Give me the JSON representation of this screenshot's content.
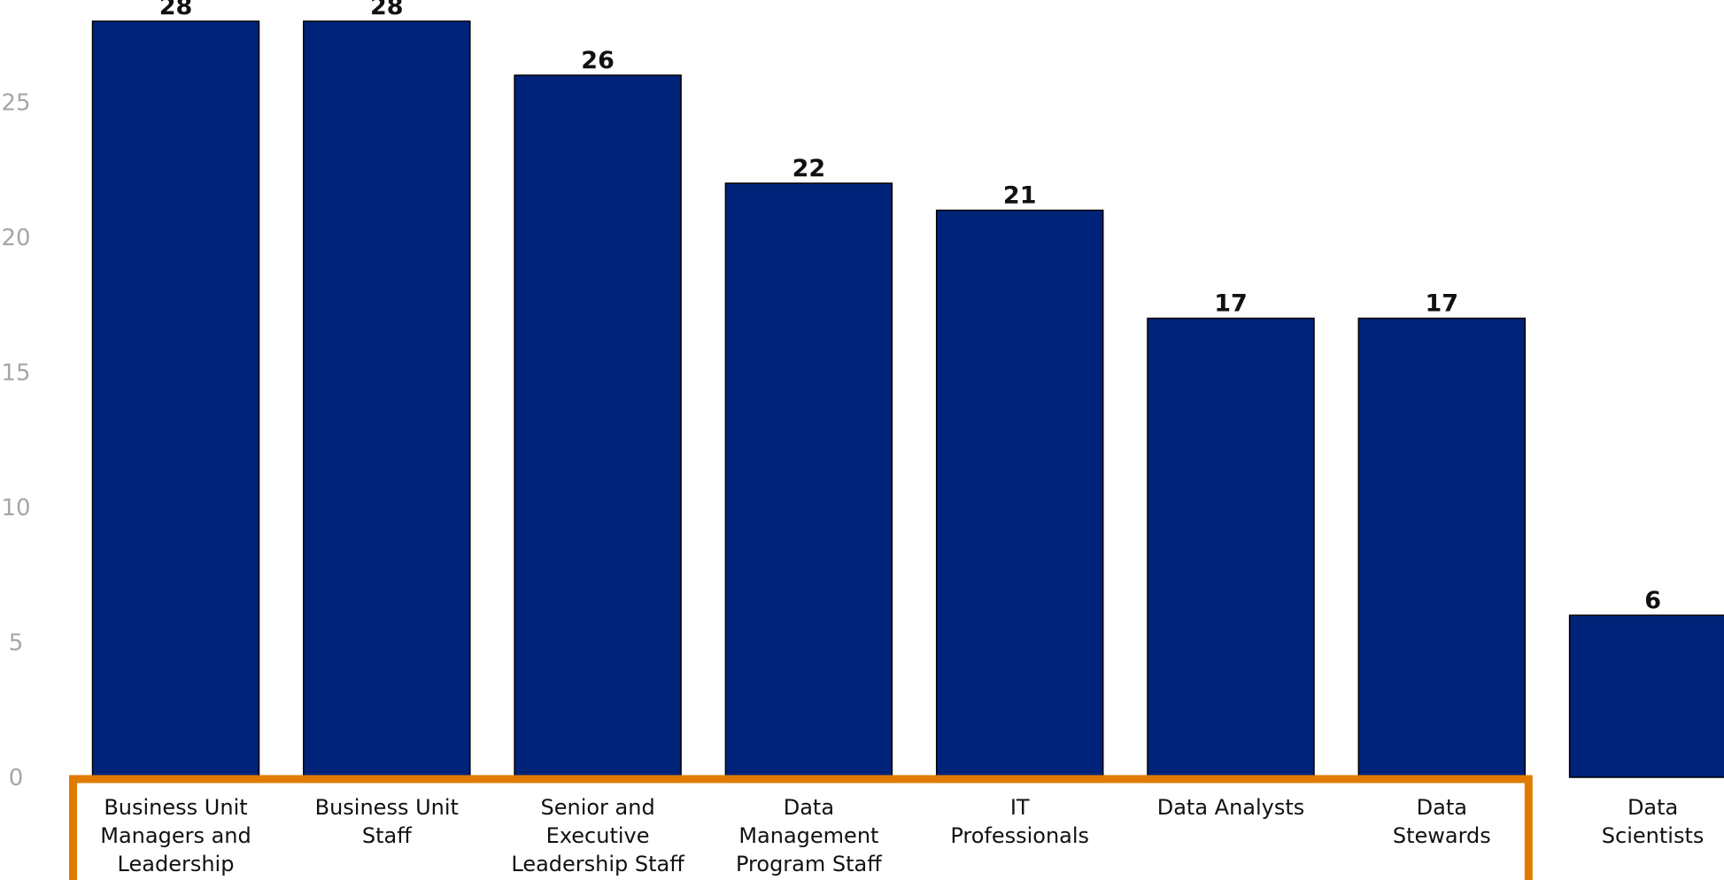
{
  "chart_data": {
    "type": "bar",
    "categories": [
      [
        "Business Unit",
        "Managers and",
        "Leadership"
      ],
      [
        "Business Unit",
        "Staff"
      ],
      [
        "Senior and",
        "Executive",
        "Leadership Staff"
      ],
      [
        "Data",
        "Management",
        "Program Staff"
      ],
      [
        "IT",
        "Professionals"
      ],
      [
        "Data Analysts"
      ],
      [
        "Data",
        "Stewards"
      ],
      [
        "Data",
        "Scientists"
      ]
    ],
    "values": [
      28,
      28,
      26,
      22,
      21,
      17,
      17,
      6
    ],
    "yticks": [
      0,
      5,
      10,
      15,
      20,
      25
    ],
    "ylim": [
      0,
      28.6
    ],
    "grid": false,
    "title": "",
    "xlabel": "",
    "ylabel": "",
    "highlight": {
      "first_index": 0,
      "last_index": 6,
      "color": "#e07b00"
    },
    "colors": {
      "bar": "#00237a",
      "bar_edge": "#000000",
      "value_label": "#111111",
      "tick_label": "#a6a6a6"
    }
  }
}
